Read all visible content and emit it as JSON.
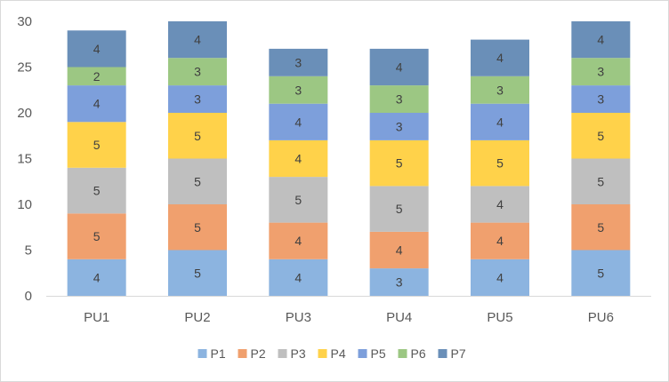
{
  "chart_data": {
    "type": "bar",
    "stacked": true,
    "categories": [
      "PU1",
      "PU2",
      "PU3",
      "PU4",
      "PU5",
      "PU6"
    ],
    "series": [
      {
        "name": "P1",
        "values": [
          4,
          5,
          4,
          3,
          4,
          5
        ],
        "color": "#8cb4e0"
      },
      {
        "name": "P2",
        "values": [
          5,
          5,
          4,
          4,
          4,
          5
        ],
        "color": "#f0a06e"
      },
      {
        "name": "P3",
        "values": [
          5,
          5,
          5,
          5,
          4,
          5
        ],
        "color": "#bfbfbf"
      },
      {
        "name": "P4",
        "values": [
          5,
          5,
          4,
          5,
          5,
          5
        ],
        "color": "#ffd24a"
      },
      {
        "name": "P5",
        "values": [
          4,
          3,
          4,
          3,
          4,
          3
        ],
        "color": "#7d9fdb"
      },
      {
        "name": "P6",
        "values": [
          2,
          3,
          3,
          3,
          3,
          3
        ],
        "color": "#9cc783"
      },
      {
        "name": "P7",
        "values": [
          4,
          4,
          3,
          4,
          4,
          4
        ],
        "color": "#6a8fb8"
      }
    ],
    "ylim": [
      0,
      30
    ],
    "yticks": [
      0,
      5,
      10,
      15,
      20,
      25,
      30
    ],
    "grid": false,
    "legend_position": "bottom",
    "data_labels": true
  }
}
